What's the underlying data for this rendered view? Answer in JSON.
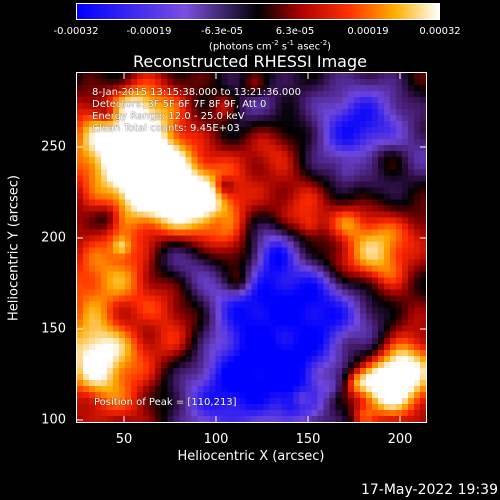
{
  "colorbar": {
    "ticks": [
      "-0.00032",
      "-0.00019",
      "-6.3e-05",
      "6.3e-05",
      "0.00019",
      "0.00032"
    ],
    "units_prefix": "(photons cm",
    "units_exp1": "-2",
    "units_mid1": " s",
    "units_exp2": "-1",
    "units_mid2": " asec",
    "units_exp3": "-2",
    "units_suffix": ")"
  },
  "title": "Reconstructed RHESSI Image",
  "info": {
    "time": "8-Jan-2015 13:15:38.000 to 13:21:36.000",
    "detectors": "Detectors: 3F 5F 6F 7F 8F 9F, Att 0",
    "energy": "Energy Range: 12.0 - 25.0 keV",
    "clean": "Clean     Total counts: 9.45E+03",
    "peak": "Position of Peak = [110,213]"
  },
  "axes": {
    "xlabel": "Heliocentric X (arcsec)",
    "ylabel": "Heliocentric Y (arcsec)",
    "xticks": [
      "50",
      "100",
      "150",
      "200"
    ],
    "yticks": [
      "250",
      "200",
      "150",
      "100"
    ],
    "xlim": [
      33,
      225
    ],
    "ylim": [
      97,
      289
    ]
  },
  "colors": {
    "background": "#000000",
    "colormap": [
      "#0000ff",
      "#6a3fd0",
      "#000000",
      "#ff0000",
      "#ffa000",
      "#ffffff"
    ]
  },
  "footer": {
    "date": "17-May-2022 19:39"
  }
}
